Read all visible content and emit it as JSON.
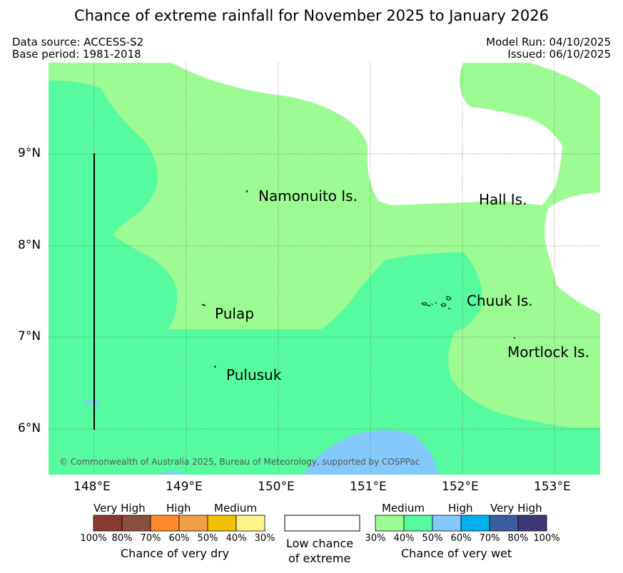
{
  "title": "Chance of extreme rainfall for November 2025 to January 2026",
  "header": {
    "data_source": "Data source: ACCESS-S2",
    "base_period": "Base period: 1981-2018",
    "model_run": "Model Run: 04/10/2025",
    "issued": "Issued: 06/10/2025"
  },
  "map": {
    "lon_ticks": [
      "148°E",
      "149°E",
      "150°E",
      "151°E",
      "152°E",
      "153°E"
    ],
    "lat_ticks": [
      "9°N",
      "8°N",
      "7°N",
      "6°N"
    ],
    "places": {
      "namonuito": "Namonuito Is.",
      "hall": "Hall Is.",
      "pulap": "Pulap",
      "chuuk": "Chuuk Is.",
      "mortlock": "Mortlock Is.",
      "pulusuk": "Pulusuk"
    },
    "copyright": "© Commonwealth of Australia 2025, Bureau of Meteorology, supported by COSPPac"
  },
  "legend": {
    "dry": {
      "headers": [
        "Very High",
        "High",
        "Medium"
      ],
      "ticks": [
        "100%",
        "80%",
        "70%",
        "60%",
        "50%",
        "40%",
        "30%"
      ],
      "caption": "Chance of very dry",
      "colors": [
        "#8b3a32",
        "#8a4e3c",
        "#ff8a2a",
        "#f0a04a",
        "#f2c200",
        "#fff38a"
      ]
    },
    "low": {
      "line1": "Low chance",
      "line2": "of extreme",
      "color": "#ffffff"
    },
    "wet": {
      "headers": [
        "Medium",
        "High",
        "Very High"
      ],
      "ticks": [
        "30%",
        "40%",
        "50%",
        "60%",
        "70%",
        "80%",
        "100%"
      ],
      "caption": "Chance of very wet",
      "colors": [
        "#9dfb93",
        "#56fb9f",
        "#84c9fc",
        "#00b0ef",
        "#3a5fa0",
        "#3c3a76"
      ]
    }
  }
}
